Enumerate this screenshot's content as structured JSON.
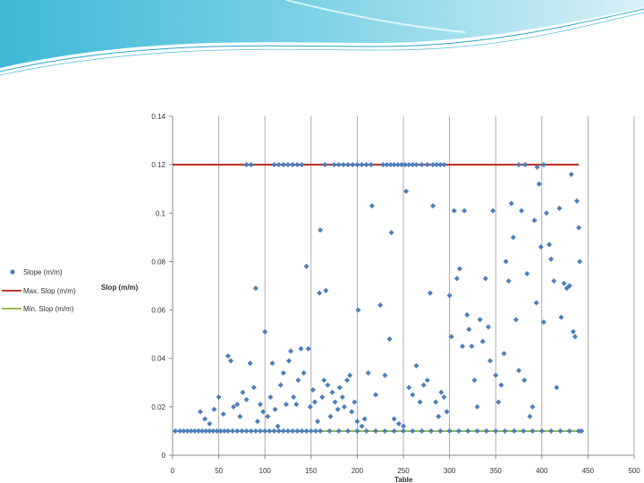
{
  "chart_data": {
    "type": "scatter",
    "title": "",
    "xlabel": "Table",
    "ylabel": "Slop (m/m)",
    "xlim": [
      0,
      500
    ],
    "ylim": [
      0,
      0.14
    ],
    "x_ticks": [
      0,
      50,
      100,
      150,
      200,
      250,
      300,
      350,
      400,
      450,
      500
    ],
    "y_ticks": [
      0,
      0.02,
      0.04,
      0.06,
      0.08,
      0.1,
      0.12,
      0.14
    ],
    "y_tick_labels": [
      "0",
      "0.02",
      "0.04",
      "0.06",
      "0.08",
      "0.1",
      "0.12",
      "0.14"
    ],
    "grid": "vertical",
    "legend_position": "left",
    "series": [
      {
        "name": "Slope (m/m)",
        "kind": "markers",
        "color": "#4a7ebb",
        "points": [
          [
            3,
            0.01
          ],
          [
            8,
            0.01
          ],
          [
            12,
            0.01
          ],
          [
            16,
            0.01
          ],
          [
            20,
            0.01
          ],
          [
            24,
            0.01
          ],
          [
            28,
            0.01
          ],
          [
            32,
            0.01
          ],
          [
            36,
            0.01
          ],
          [
            40,
            0.01
          ],
          [
            44,
            0.01
          ],
          [
            48,
            0.01
          ],
          [
            52,
            0.01
          ],
          [
            56,
            0.01
          ],
          [
            60,
            0.01
          ],
          [
            65,
            0.01
          ],
          [
            70,
            0.01
          ],
          [
            75,
            0.01
          ],
          [
            80,
            0.01
          ],
          [
            85,
            0.01
          ],
          [
            90,
            0.01
          ],
          [
            95,
            0.01
          ],
          [
            100,
            0.01
          ],
          [
            105,
            0.01
          ],
          [
            110,
            0.01
          ],
          [
            115,
            0.01
          ],
          [
            120,
            0.01
          ],
          [
            125,
            0.01
          ],
          [
            130,
            0.01
          ],
          [
            135,
            0.01
          ],
          [
            140,
            0.01
          ],
          [
            145,
            0.01
          ],
          [
            150,
            0.01
          ],
          [
            155,
            0.01
          ],
          [
            160,
            0.01
          ],
          [
            170,
            0.01
          ],
          [
            180,
            0.01
          ],
          [
            190,
            0.01
          ],
          [
            200,
            0.01
          ],
          [
            210,
            0.01
          ],
          [
            220,
            0.01
          ],
          [
            230,
            0.01
          ],
          [
            240,
            0.01
          ],
          [
            250,
            0.01
          ],
          [
            260,
            0.01
          ],
          [
            270,
            0.01
          ],
          [
            280,
            0.01
          ],
          [
            290,
            0.01
          ],
          [
            300,
            0.01
          ],
          [
            310,
            0.01
          ],
          [
            320,
            0.01
          ],
          [
            330,
            0.01
          ],
          [
            340,
            0.01
          ],
          [
            350,
            0.01
          ],
          [
            360,
            0.01
          ],
          [
            370,
            0.01
          ],
          [
            380,
            0.01
          ],
          [
            390,
            0.01
          ],
          [
            400,
            0.01
          ],
          [
            410,
            0.01
          ],
          [
            420,
            0.01
          ],
          [
            430,
            0.01
          ],
          [
            440,
            0.01
          ],
          [
            80,
            0.12
          ],
          [
            85,
            0.12
          ],
          [
            110,
            0.12
          ],
          [
            115,
            0.12
          ],
          [
            120,
            0.12
          ],
          [
            125,
            0.12
          ],
          [
            130,
            0.12
          ],
          [
            135,
            0.12
          ],
          [
            140,
            0.12
          ],
          [
            165,
            0.12
          ],
          [
            175,
            0.12
          ],
          [
            180,
            0.12
          ],
          [
            185,
            0.12
          ],
          [
            190,
            0.12
          ],
          [
            195,
            0.12
          ],
          [
            200,
            0.12
          ],
          [
            205,
            0.12
          ],
          [
            210,
            0.12
          ],
          [
            215,
            0.12
          ],
          [
            228,
            0.12
          ],
          [
            232,
            0.12
          ],
          [
            236,
            0.12
          ],
          [
            240,
            0.12
          ],
          [
            244,
            0.12
          ],
          [
            248,
            0.12
          ],
          [
            252,
            0.12
          ],
          [
            256,
            0.12
          ],
          [
            260,
            0.12
          ],
          [
            264,
            0.12
          ],
          [
            270,
            0.12
          ],
          [
            276,
            0.12
          ],
          [
            282,
            0.12
          ],
          [
            286,
            0.12
          ],
          [
            290,
            0.12
          ],
          [
            294,
            0.12
          ],
          [
            375,
            0.12
          ],
          [
            382,
            0.12
          ],
          [
            395,
            0.119
          ],
          [
            402,
            0.12
          ],
          [
            30,
            0.018
          ],
          [
            35,
            0.015
          ],
          [
            40,
            0.013
          ],
          [
            45,
            0.019
          ],
          [
            50,
            0.024
          ],
          [
            55,
            0.017
          ],
          [
            60,
            0.041
          ],
          [
            63,
            0.039
          ],
          [
            66,
            0.02
          ],
          [
            70,
            0.021
          ],
          [
            73,
            0.016
          ],
          [
            76,
            0.026
          ],
          [
            80,
            0.023
          ],
          [
            84,
            0.038
          ],
          [
            88,
            0.028
          ],
          [
            90,
            0.069
          ],
          [
            92,
            0.014
          ],
          [
            95,
            0.021
          ],
          [
            98,
            0.018
          ],
          [
            100,
            0.051
          ],
          [
            103,
            0.016
          ],
          [
            106,
            0.024
          ],
          [
            108,
            0.038
          ],
          [
            111,
            0.019
          ],
          [
            114,
            0.012
          ],
          [
            117,
            0.029
          ],
          [
            120,
            0.034
          ],
          [
            123,
            0.021
          ],
          [
            126,
            0.039
          ],
          [
            128,
            0.043
          ],
          [
            131,
            0.024
          ],
          [
            134,
            0.021
          ],
          [
            136,
            0.031
          ],
          [
            139,
            0.044
          ],
          [
            142,
            0.034
          ],
          [
            145,
            0.078
          ],
          [
            147,
            0.044
          ],
          [
            149,
            0.02
          ],
          [
            152,
            0.027
          ],
          [
            154,
            0.022
          ],
          [
            157,
            0.014
          ],
          [
            159,
            0.067
          ],
          [
            160,
            0.093
          ],
          [
            162,
            0.024
          ],
          [
            164,
            0.031
          ],
          [
            166,
            0.068
          ],
          [
            168,
            0.029
          ],
          [
            171,
            0.016
          ],
          [
            173,
            0.026
          ],
          [
            176,
            0.022
          ],
          [
            179,
            0.019
          ],
          [
            181,
            0.028
          ],
          [
            184,
            0.024
          ],
          [
            186,
            0.02
          ],
          [
            189,
            0.031
          ],
          [
            192,
            0.033
          ],
          [
            194,
            0.018
          ],
          [
            197,
            0.022
          ],
          [
            200,
            0.014
          ],
          [
            201,
            0.06
          ],
          [
            205,
            0.012
          ],
          [
            208,
            0.015
          ],
          [
            212,
            0.034
          ],
          [
            216,
            0.103
          ],
          [
            220,
            0.025
          ],
          [
            225,
            0.062
          ],
          [
            230,
            0.033
          ],
          [
            235,
            0.048
          ],
          [
            237,
            0.092
          ],
          [
            240,
            0.015
          ],
          [
            245,
            0.013
          ],
          [
            250,
            0.012
          ],
          [
            253,
            0.109
          ],
          [
            256,
            0.028
          ],
          [
            260,
            0.025
          ],
          [
            264,
            0.037
          ],
          [
            268,
            0.022
          ],
          [
            272,
            0.029
          ],
          [
            276,
            0.031
          ],
          [
            279,
            0.067
          ],
          [
            282,
            0.103
          ],
          [
            285,
            0.022
          ],
          [
            288,
            0.016
          ],
          [
            291,
            0.026
          ],
          [
            294,
            0.024
          ],
          [
            297,
            0.018
          ],
          [
            300,
            0.066
          ],
          [
            302,
            0.049
          ],
          [
            305,
            0.101
          ],
          [
            308,
            0.073
          ],
          [
            311,
            0.077
          ],
          [
            314,
            0.045
          ],
          [
            316,
            0.101
          ],
          [
            319,
            0.058
          ],
          [
            321,
            0.052
          ],
          [
            324,
            0.045
          ],
          [
            327,
            0.031
          ],
          [
            330,
            0.02
          ],
          [
            333,
            0.056
          ],
          [
            336,
            0.047
          ],
          [
            339,
            0.073
          ],
          [
            342,
            0.053
          ],
          [
            344,
            0.039
          ],
          [
            347,
            0.101
          ],
          [
            350,
            0.033
          ],
          [
            353,
            0.022
          ],
          [
            356,
            0.029
          ],
          [
            359,
            0.042
          ],
          [
            361,
            0.08
          ],
          [
            364,
            0.072
          ],
          [
            367,
            0.104
          ],
          [
            369,
            0.09
          ],
          [
            372,
            0.056
          ],
          [
            375,
            0.035
          ],
          [
            378,
            0.101
          ],
          [
            381,
            0.031
          ],
          [
            384,
            0.075
          ],
          [
            387,
            0.016
          ],
          [
            390,
            0.02
          ],
          [
            392,
            0.097
          ],
          [
            394,
            0.063
          ],
          [
            397,
            0.112
          ],
          [
            399,
            0.086
          ],
          [
            402,
            0.055
          ],
          [
            405,
            0.1
          ],
          [
            408,
            0.087
          ],
          [
            410,
            0.081
          ],
          [
            413,
            0.072
          ],
          [
            416,
            0.028
          ],
          [
            419,
            0.102
          ],
          [
            421,
            0.057
          ],
          [
            424,
            0.071
          ],
          [
            427,
            0.069
          ],
          [
            430,
            0.07
          ],
          [
            432,
            0.116
          ],
          [
            434,
            0.051
          ],
          [
            436,
            0.049
          ],
          [
            438,
            0.105
          ],
          [
            440,
            0.094
          ],
          [
            441,
            0.08
          ],
          [
            443,
            0.01
          ]
        ]
      },
      {
        "name": "Max. Slop (m/m)",
        "kind": "line",
        "color": "#be3a34",
        "points": [
          [
            0,
            0.12
          ],
          [
            440,
            0.12
          ]
        ]
      },
      {
        "name": "Min. Slop (m/m)",
        "kind": "line",
        "color": "#98b954",
        "points": [
          [
            0,
            0.01
          ],
          [
            440,
            0.01
          ]
        ]
      }
    ]
  }
}
